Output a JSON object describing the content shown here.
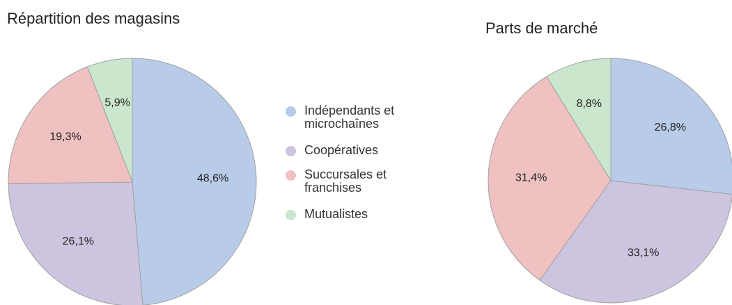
{
  "chart_data": [
    {
      "type": "pie",
      "title": "Répartition des magasins",
      "categories": [
        "Indépendants et microchaînes",
        "Coopératives",
        "Succursales et franchises",
        "Mutualistes"
      ],
      "values": [
        48.6,
        26.1,
        19.3,
        5.9
      ],
      "value_labels": [
        "48,6%",
        "26,1%",
        "19,3%",
        "5,9%"
      ],
      "colors": [
        "#b8cce9",
        "#cdc4e0",
        "#efc1c1",
        "#cae6cd"
      ],
      "legend": "right"
    },
    {
      "type": "pie",
      "title": "Parts de marché",
      "categories": [
        "Indépendants et microchaînes",
        "Coopératives",
        "Succursales et franchises",
        "Mutualistes"
      ],
      "values": [
        26.8,
        33.1,
        31.4,
        8.8
      ],
      "value_labels": [
        "26,8%",
        "33,1%",
        "31,4%",
        "8,8%"
      ],
      "colors": [
        "#b8cce9",
        "#cdc4e0",
        "#efc1c1",
        "#cae6cd"
      ]
    }
  ]
}
